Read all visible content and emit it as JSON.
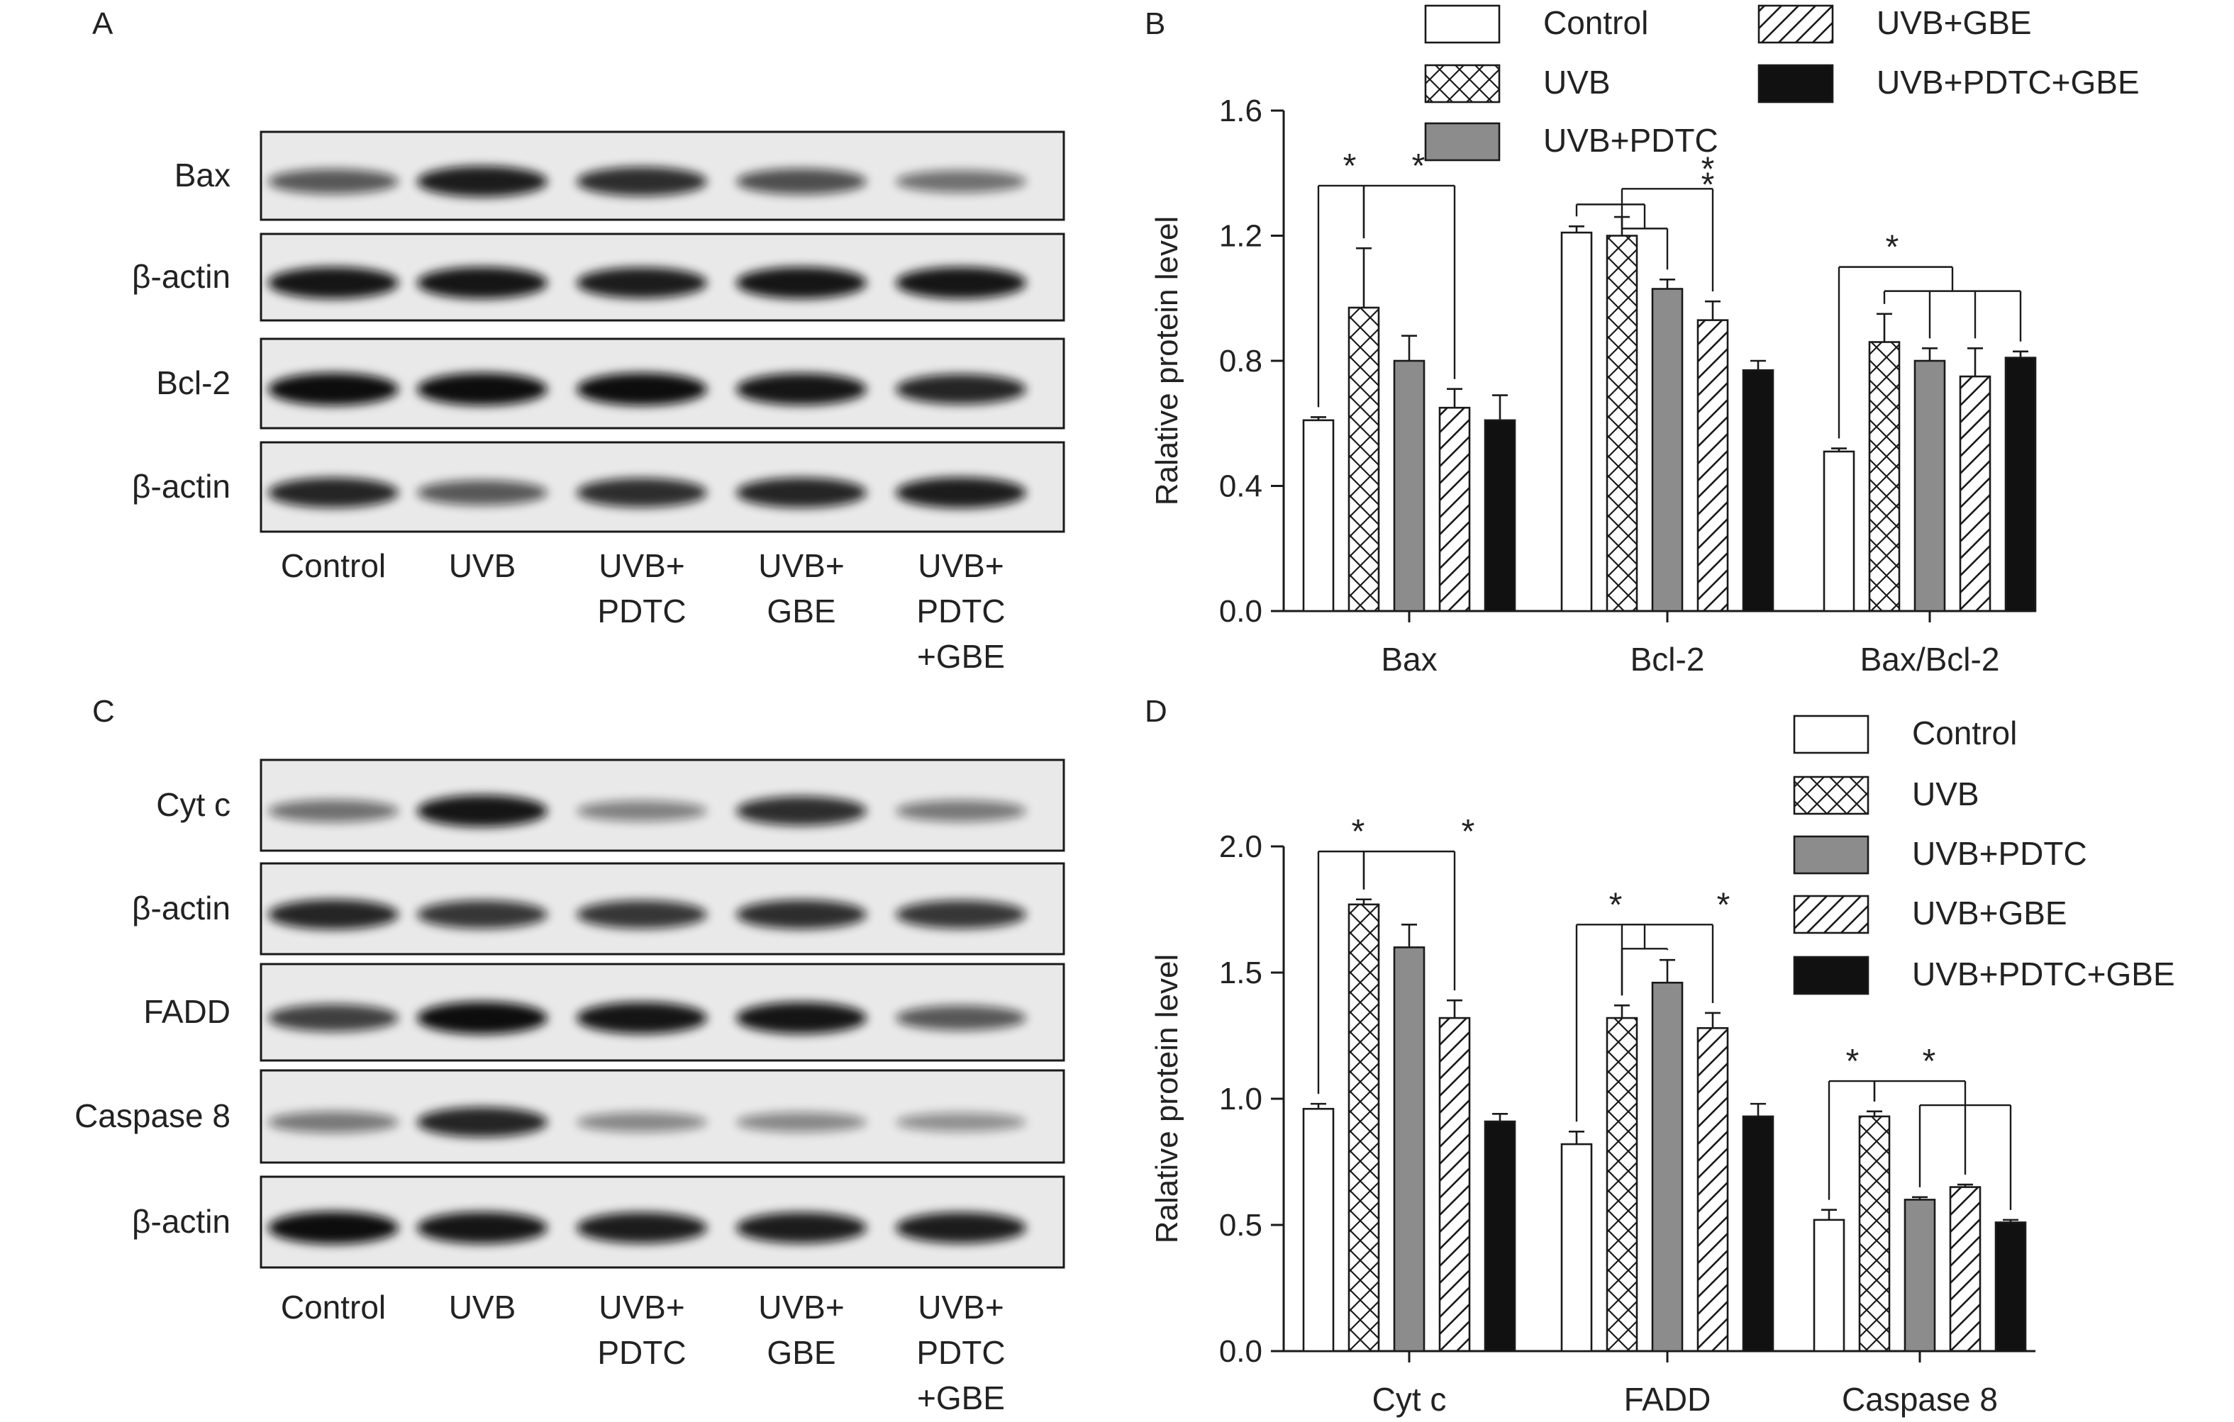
{
  "panels": {
    "a": {
      "letter": "A"
    },
    "b": {
      "letter": "B"
    },
    "c": {
      "letter": "C"
    },
    "d": {
      "letter": "D"
    }
  },
  "lanes": [
    "Control",
    "UVB",
    "UVB+\nPDTC",
    "UVB+\nGBE",
    "UVB+\nPDTC\n+GBE"
  ],
  "blots_a": [
    {
      "label": "Bax",
      "intensity": [
        0.55,
        0.9,
        0.8,
        0.6,
        0.4
      ]
    },
    {
      "label": "β-actin",
      "intensity": [
        0.95,
        0.95,
        0.9,
        0.95,
        0.95
      ]
    },
    {
      "label": "Bcl-2",
      "intensity": [
        1.0,
        1.0,
        1.0,
        0.95,
        0.85
      ]
    },
    {
      "label": "β-actin",
      "intensity": [
        0.85,
        0.55,
        0.8,
        0.85,
        0.9
      ]
    }
  ],
  "blots_c": [
    {
      "label": "Cyt c",
      "intensity": [
        0.4,
        0.95,
        0.3,
        0.8,
        0.35
      ]
    },
    {
      "label": "β-actin",
      "intensity": [
        0.85,
        0.75,
        0.75,
        0.8,
        0.75
      ]
    },
    {
      "label": "FADD",
      "intensity": [
        0.7,
        1.0,
        0.95,
        0.95,
        0.55
      ]
    },
    {
      "label": "Caspase 8",
      "intensity": [
        0.35,
        0.85,
        0.25,
        0.25,
        0.2
      ]
    },
    {
      "label": "β-actin",
      "intensity": [
        1.0,
        0.95,
        0.9,
        0.9,
        0.9
      ]
    }
  ],
  "legend_colors": {
    "fill_light": "#ffffff",
    "fill_gray": "#8c8c8c",
    "fill_black": "#111111",
    "stroke": "#1a1a1a"
  },
  "chart_data": [
    {
      "type": "bar",
      "panel": "B",
      "ylabel": "Ralative protein level",
      "ylim": [
        0,
        1.6
      ],
      "yticks": [
        "0.0",
        "0.4",
        "0.8",
        "1.2",
        "1.6"
      ],
      "categories": [
        "Bax",
        "Bcl-2",
        "Bax/Bcl-2"
      ],
      "legend_position": "top",
      "series": [
        {
          "name": "Control",
          "fill": "white",
          "values": [
            0.61,
            1.21,
            0.51
          ],
          "errors": [
            0.01,
            0.02,
            0.01
          ]
        },
        {
          "name": "UVB",
          "fill": "crosshatch",
          "values": [
            0.97,
            1.2,
            0.86
          ],
          "errors": [
            0.19,
            0.06,
            0.09
          ]
        },
        {
          "name": "UVB+PDTC",
          "fill": "gray",
          "values": [
            0.8,
            1.03,
            0.8
          ],
          "errors": [
            0.08,
            0.03,
            0.04
          ]
        },
        {
          "name": "UVB+GBE",
          "fill": "diagonal",
          "values": [
            0.65,
            0.93,
            0.75
          ],
          "errors": [
            0.06,
            0.06,
            0.09
          ]
        },
        {
          "name": "UVB+PDTC+GBE",
          "fill": "black",
          "values": [
            0.61,
            0.77,
            0.81
          ],
          "errors": [
            0.08,
            0.03,
            0.02
          ]
        }
      ],
      "significance_marker": "*"
    },
    {
      "type": "bar",
      "panel": "D",
      "ylabel": "Ralative protein level",
      "ylim": [
        0,
        2.0
      ],
      "yticks": [
        "0.0",
        "0.5",
        "1.0",
        "1.5",
        "2.0"
      ],
      "categories": [
        "Cyt c",
        "FADD",
        "Caspase 8"
      ],
      "legend_position": "top-right",
      "series": [
        {
          "name": "Control",
          "fill": "white",
          "values": [
            0.96,
            0.82,
            0.52
          ],
          "errors": [
            0.02,
            0.05,
            0.04
          ]
        },
        {
          "name": "UVB",
          "fill": "crosshatch",
          "values": [
            1.77,
            1.32,
            0.93
          ],
          "errors": [
            0.02,
            0.05,
            0.02
          ]
        },
        {
          "name": "UVB+PDTC",
          "fill": "gray",
          "values": [
            1.6,
            1.46,
            0.6
          ],
          "errors": [
            0.09,
            0.09,
            0.01
          ]
        },
        {
          "name": "UVB+GBE",
          "fill": "diagonal",
          "values": [
            1.32,
            1.28,
            0.65
          ],
          "errors": [
            0.07,
            0.06,
            0.01
          ]
        },
        {
          "name": "UVB+PDTC+GBE",
          "fill": "black",
          "values": [
            0.91,
            0.93,
            0.51
          ],
          "errors": [
            0.03,
            0.05,
            0.01
          ]
        }
      ],
      "significance_marker": "*"
    }
  ]
}
